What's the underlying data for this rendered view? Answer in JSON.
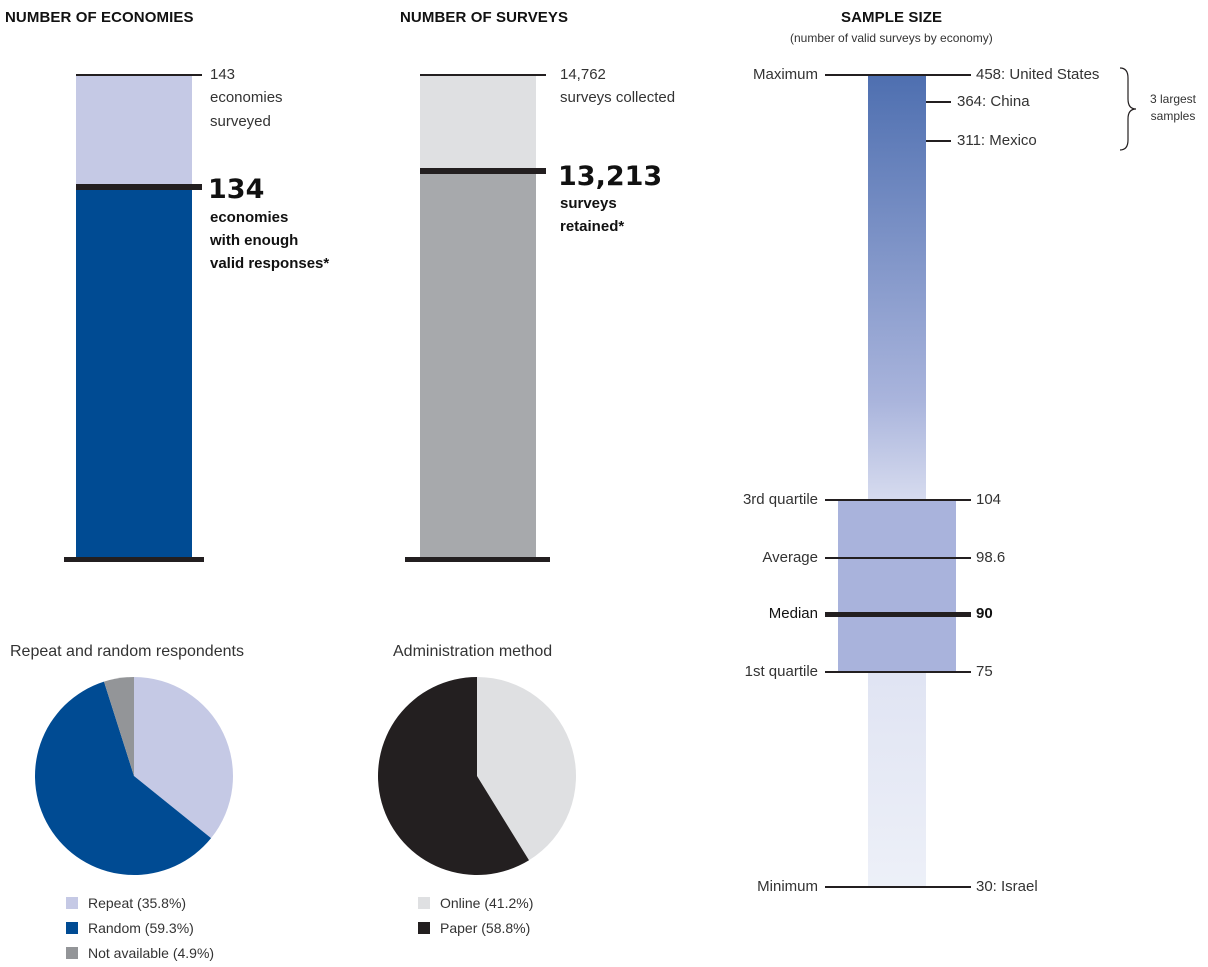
{
  "colors": {
    "blue": "#004b93",
    "light_blue": "#c5c9e5",
    "grey": "#a7a9ac",
    "light_grey": "#dfe0e2",
    "black": "#231f20",
    "mid_grey": "#939598",
    "quartile_box": "#a9b3dc",
    "gradient_top": "#4e6fb0",
    "gradient_bottom": "#edf0f8"
  },
  "economies": {
    "title": "NUMBER OF ECONOMIES",
    "total_value": "143",
    "total_text_1": "economies",
    "total_text_2": "surveyed",
    "kept_value": "134",
    "kept_text_1": "economies",
    "kept_text_2": "with enough",
    "kept_text_3": "valid responses*"
  },
  "surveys": {
    "title": "NUMBER OF SURVEYS",
    "total_value": "14,762",
    "total_text": "surveys collected",
    "kept_value": "13,213",
    "kept_text_1": "surveys",
    "kept_text_2": "retained*"
  },
  "sample": {
    "title": "SAMPLE SIZE",
    "subtitle": "(number of valid surveys by economy)",
    "maximum_label": "Maximum",
    "q3_label": "3rd quartile",
    "average_label": "Average",
    "median_label": "Median",
    "q1_label": "1st quartile",
    "minimum_label": "Minimum",
    "top1": "458: United States",
    "top2": "364: China",
    "top3": "311: Mexico",
    "q3_value": "104",
    "average_value": "98.6",
    "median_value": "90",
    "q1_value": "75",
    "minimum_value": "30: Israel",
    "brace_label_1": "3 largest",
    "brace_label_2": "samples"
  },
  "pie1": {
    "title": "Repeat and random respondents",
    "legend": [
      "Repeat (35.8%)",
      "Random (59.3%)",
      "Not available (4.9%)"
    ]
  },
  "pie2": {
    "title": "Administration method",
    "legend": [
      "Online (41.2%)",
      "Paper (58.8%)"
    ]
  },
  "chart_data": [
    {
      "type": "bar",
      "title": "NUMBER OF ECONOMIES",
      "categories": [
        "economies surveyed",
        "economies with enough valid responses*"
      ],
      "values": [
        143,
        134
      ]
    },
    {
      "type": "bar",
      "title": "NUMBER OF SURVEYS",
      "categories": [
        "surveys collected",
        "surveys retained*"
      ],
      "values": [
        14762,
        13213
      ]
    },
    {
      "type": "bar",
      "title": "SAMPLE SIZE",
      "subtitle": "(number of valid surveys by economy)",
      "categories": [
        "Maximum",
        "3rd quartile",
        "Average",
        "Median",
        "1st quartile",
        "Minimum"
      ],
      "values": [
        458,
        104,
        98.6,
        90,
        75,
        30
      ],
      "annotations": [
        "458: United States",
        "364: China",
        "311: Mexico",
        "30: Israel"
      ]
    },
    {
      "type": "pie",
      "title": "Repeat and random respondents",
      "categories": [
        "Repeat",
        "Random",
        "Not available"
      ],
      "values": [
        35.8,
        59.3,
        4.9
      ]
    },
    {
      "type": "pie",
      "title": "Administration method",
      "categories": [
        "Online",
        "Paper"
      ],
      "values": [
        41.2,
        58.8
      ]
    }
  ]
}
